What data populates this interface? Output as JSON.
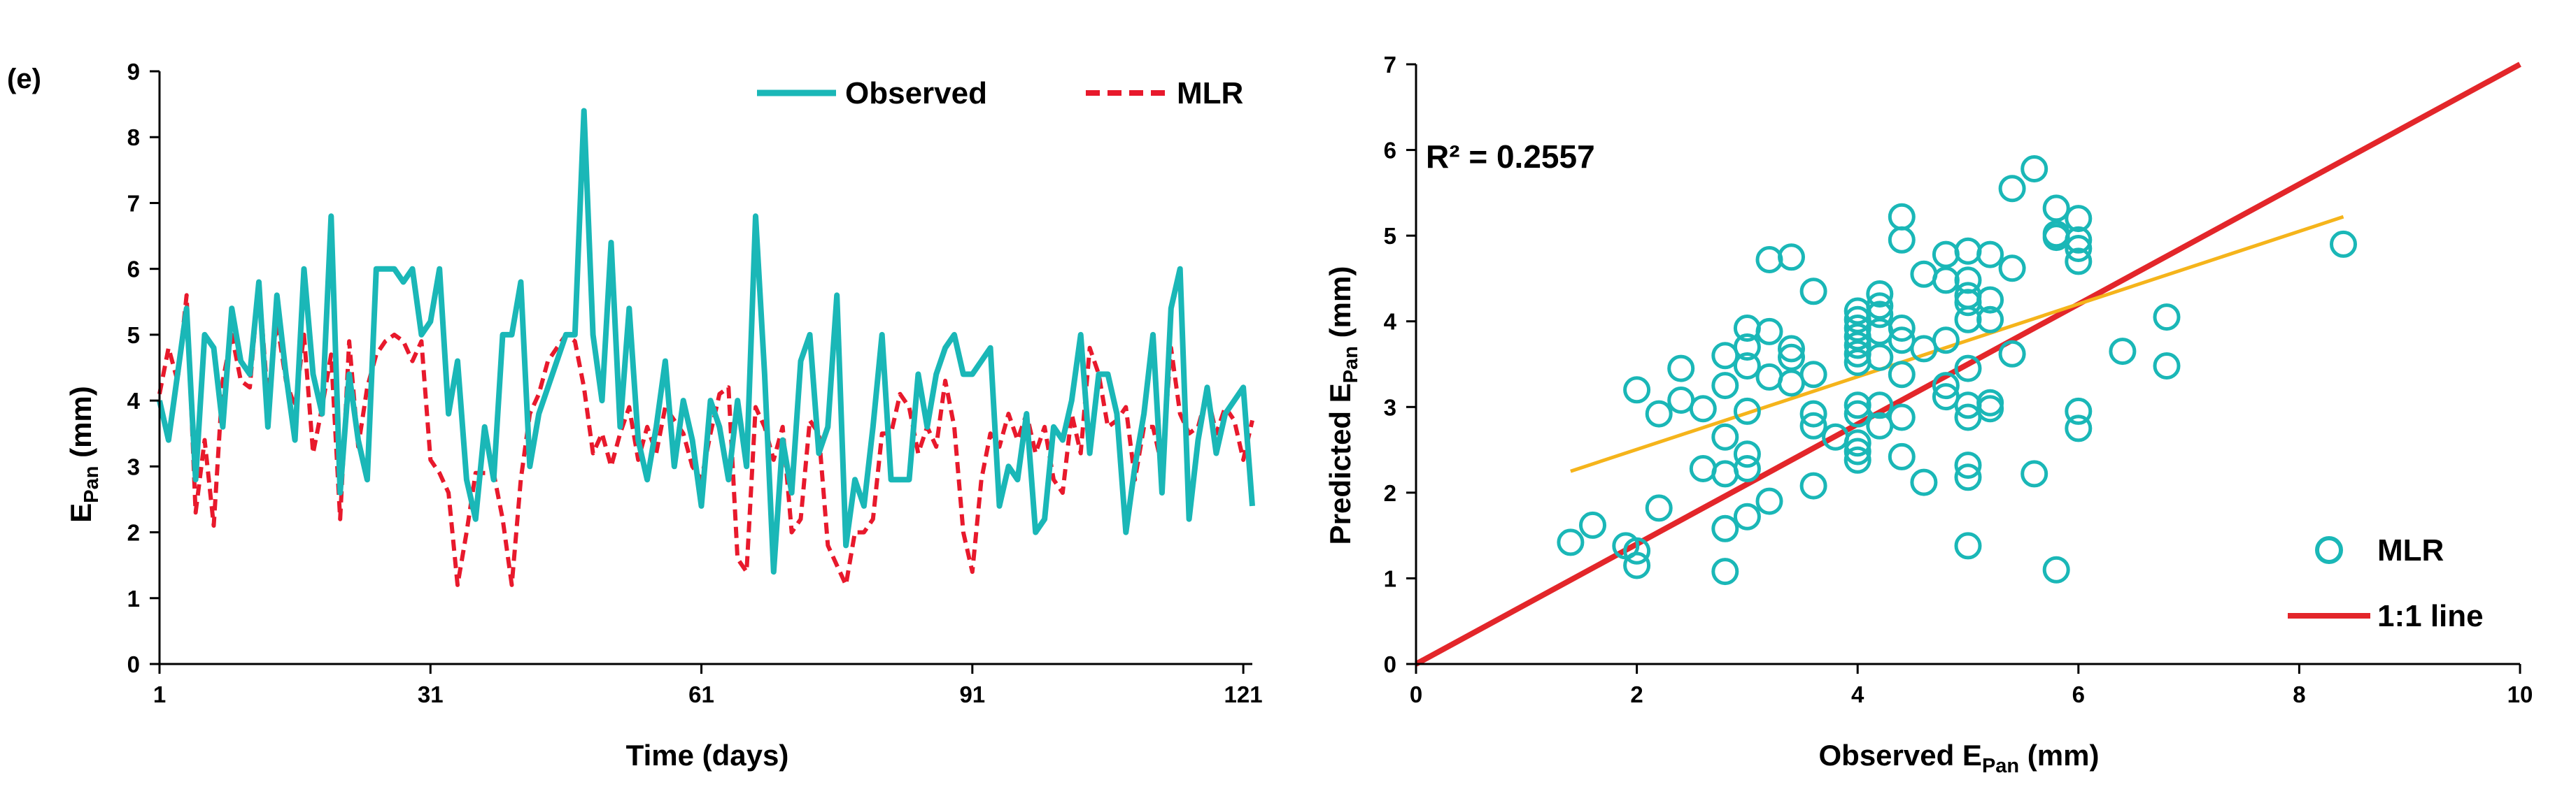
{
  "panel_label": "(e)",
  "colors": {
    "observed": "#1AB7B7",
    "mlr": "#E8192C",
    "one_to_one": "#E3262A",
    "trend": "#F5B41B",
    "axis": "#000000"
  },
  "chart_data": [
    {
      "type": "line",
      "title": "",
      "xlabel": "Time (days)",
      "ylabel": {
        "main": "E",
        "sub": "Pan",
        "unit": " (mm)"
      },
      "xlim": [
        1,
        122
      ],
      "ylim": [
        0,
        9
      ],
      "xticks": [
        1,
        31,
        61,
        91,
        121
      ],
      "yticks": [
        0,
        1,
        2,
        3,
        4,
        5,
        6,
        7,
        8,
        9
      ],
      "legend": [
        "Observed",
        "MLR"
      ],
      "legend_position": "top-right",
      "x": [
        1,
        2,
        3,
        4,
        5,
        6,
        7,
        8,
        9,
        10,
        11,
        12,
        13,
        14,
        15,
        16,
        17,
        18,
        19,
        20,
        21,
        22,
        23,
        24,
        25,
        26,
        27,
        28,
        29,
        30,
        31,
        32,
        33,
        34,
        35,
        36,
        37,
        38,
        39,
        40,
        41,
        42,
        43,
        44,
        45,
        46,
        47,
        48,
        49,
        50,
        51,
        52,
        53,
        54,
        55,
        56,
        57,
        58,
        59,
        60,
        61,
        62,
        63,
        64,
        65,
        66,
        67,
        68,
        69,
        70,
        71,
        72,
        73,
        74,
        75,
        76,
        77,
        78,
        79,
        80,
        81,
        82,
        83,
        84,
        85,
        86,
        87,
        88,
        89,
        90,
        91,
        92,
        93,
        94,
        95,
        96,
        97,
        98,
        99,
        100,
        101,
        102,
        103,
        104,
        105,
        106,
        107,
        108,
        109,
        110,
        111,
        112,
        113,
        114,
        115,
        116,
        117,
        118,
        119,
        120,
        121,
        122
      ],
      "series": [
        {
          "name": "Observed",
          "values": [
            4.0,
            3.4,
            4.4,
            5.4,
            2.8,
            5.0,
            4.8,
            3.6,
            5.4,
            4.6,
            4.4,
            5.8,
            3.6,
            5.6,
            4.4,
            3.4,
            6.0,
            4.4,
            3.8,
            6.8,
            2.6,
            4.4,
            3.4,
            2.8,
            6.0,
            6.0,
            6.0,
            5.8,
            6.0,
            5.0,
            5.2,
            6.0,
            3.8,
            4.6,
            2.8,
            2.2,
            3.6,
            2.8,
            5.0,
            5.0,
            5.8,
            3.0,
            3.8,
            4.2,
            4.6,
            5.0,
            5.0,
            8.4,
            5.0,
            4.0,
            6.4,
            3.6,
            5.4,
            3.4,
            2.8,
            3.6,
            4.6,
            3.0,
            4.0,
            3.4,
            2.4,
            4.0,
            3.6,
            2.8,
            4.0,
            3.0,
            6.8,
            4.4,
            1.4,
            3.4,
            2.6,
            4.6,
            5.0,
            3.2,
            3.6,
            5.6,
            1.8,
            2.8,
            2.4,
            3.6,
            5.0,
            2.8,
            2.8,
            2.8,
            4.4,
            3.6,
            4.4,
            4.8,
            5.0,
            4.4,
            4.4,
            4.6,
            4.8,
            2.4,
            3.0,
            2.8,
            3.8,
            2.0,
            2.2,
            3.6,
            3.4,
            4.0,
            5.0,
            3.2,
            4.4,
            4.4,
            3.8,
            2.0,
            3.0,
            3.8,
            5.0,
            2.6,
            5.4,
            6.0,
            2.2,
            3.4,
            4.2,
            3.2,
            3.8,
            4.0,
            4.2,
            2.4
          ]
        },
        {
          "name": "MLR",
          "values": [
            4.1,
            4.8,
            4.3,
            5.6,
            2.3,
            3.4,
            2.1,
            4.3,
            5.0,
            4.3,
            4.2,
            5.8,
            4.0,
            5.2,
            4.3,
            3.9,
            5.0,
            3.2,
            3.9,
            4.7,
            2.2,
            4.9,
            3.3,
            4.2,
            4.7,
            4.9,
            5.0,
            4.9,
            4.6,
            4.9,
            3.1,
            2.9,
            2.6,
            1.2,
            2.0,
            2.9,
            2.9,
            2.9,
            2.2,
            1.2,
            2.8,
            3.8,
            4.1,
            4.6,
            4.8,
            5.0,
            4.9,
            4.2,
            3.2,
            3.5,
            3.0,
            3.5,
            3.9,
            3.1,
            3.6,
            3.2,
            3.9,
            3.7,
            3.5,
            3.0,
            2.8,
            3.5,
            4.1,
            4.2,
            1.6,
            1.4,
            3.9,
            3.6,
            3.1,
            3.6,
            2.0,
            2.2,
            3.7,
            3.5,
            1.8,
            1.5,
            1.2,
            2.0,
            2.0,
            2.2,
            3.5,
            3.5,
            4.1,
            3.9,
            3.2,
            3.6,
            3.3,
            4.3,
            3.6,
            2.0,
            1.4,
            2.8,
            3.5,
            3.3,
            3.8,
            3.4,
            3.8,
            3.2,
            3.6,
            2.8,
            2.6,
            3.8,
            3.2,
            4.8,
            4.4,
            3.6,
            3.7,
            3.9,
            2.8,
            3.6,
            3.6,
            3.0,
            4.8,
            3.8,
            3.5,
            3.6,
            4.1,
            3.5,
            3.9,
            3.7,
            3.1,
            3.7
          ]
        }
      ]
    },
    {
      "type": "scatter",
      "title": "",
      "xlabel": {
        "main": "Observed E",
        "sub": "Pan",
        "unit": " (mm)"
      },
      "ylabel": {
        "main": "Predicted E",
        "sub": "Pan",
        "unit": " (mm)"
      },
      "xlim": [
        0,
        10
      ],
      "ylim": [
        0,
        7
      ],
      "xticks": [
        0,
        2,
        4,
        6,
        8,
        10
      ],
      "yticks": [
        0,
        1,
        2,
        3,
        4,
        5,
        6,
        7
      ],
      "annotation": "R² = 0.2557",
      "legend": [
        "MLR",
        "1:1 line"
      ],
      "legend_position": "bottom-right",
      "one_to_one": [
        [
          0,
          0
        ],
        [
          10,
          7
        ]
      ],
      "trendline": [
        [
          1.4,
          2.25
        ],
        [
          8.4,
          5.22
        ]
      ],
      "points": [
        [
          1.4,
          1.42
        ],
        [
          1.6,
          1.62
        ],
        [
          1.9,
          1.38
        ],
        [
          2.0,
          1.15
        ],
        [
          2.0,
          1.32
        ],
        [
          2.0,
          3.2
        ],
        [
          2.2,
          1.82
        ],
        [
          2.2,
          2.92
        ],
        [
          2.4,
          3.08
        ],
        [
          2.4,
          3.45
        ],
        [
          2.6,
          2.98
        ],
        [
          2.6,
          2.28
        ],
        [
          2.8,
          2.22
        ],
        [
          2.8,
          2.65
        ],
        [
          2.8,
          3.6
        ],
        [
          2.8,
          3.25
        ],
        [
          2.8,
          1.58
        ],
        [
          2.8,
          1.08
        ],
        [
          3.0,
          2.95
        ],
        [
          3.0,
          2.45
        ],
        [
          3.0,
          2.28
        ],
        [
          3.0,
          3.48
        ],
        [
          3.0,
          3.7
        ],
        [
          3.0,
          3.92
        ],
        [
          3.0,
          1.72
        ],
        [
          3.2,
          1.9
        ],
        [
          3.2,
          3.88
        ],
        [
          3.2,
          3.35
        ],
        [
          3.2,
          4.72
        ],
        [
          3.4,
          4.75
        ],
        [
          3.4,
          3.68
        ],
        [
          3.4,
          3.58
        ],
        [
          3.4,
          3.28
        ],
        [
          3.6,
          2.92
        ],
        [
          3.6,
          2.78
        ],
        [
          3.6,
          2.08
        ],
        [
          3.6,
          3.38
        ],
        [
          3.6,
          4.35
        ],
        [
          3.8,
          2.65
        ],
        [
          4.0,
          2.38
        ],
        [
          4.0,
          2.48
        ],
        [
          4.0,
          2.58
        ],
        [
          4.0,
          2.92
        ],
        [
          4.0,
          3.02
        ],
        [
          4.0,
          3.52
        ],
        [
          4.0,
          3.62
        ],
        [
          4.0,
          3.72
        ],
        [
          4.0,
          3.82
        ],
        [
          4.0,
          3.92
        ],
        [
          4.0,
          4.02
        ],
        [
          4.0,
          4.12
        ],
        [
          4.2,
          3.58
        ],
        [
          4.2,
          3.88
        ],
        [
          4.2,
          4.08
        ],
        [
          4.2,
          4.18
        ],
        [
          4.2,
          4.32
        ],
        [
          4.2,
          3.02
        ],
        [
          4.2,
          2.78
        ],
        [
          4.4,
          2.88
        ],
        [
          4.4,
          3.38
        ],
        [
          4.4,
          3.78
        ],
        [
          4.4,
          3.92
        ],
        [
          4.4,
          4.95
        ],
        [
          4.4,
          5.22
        ],
        [
          4.4,
          2.42
        ],
        [
          4.6,
          2.12
        ],
        [
          4.6,
          4.55
        ],
        [
          4.6,
          3.68
        ],
        [
          4.8,
          3.12
        ],
        [
          4.8,
          3.25
        ],
        [
          4.8,
          3.78
        ],
        [
          4.8,
          4.48
        ],
        [
          4.8,
          4.78
        ],
        [
          5.0,
          4.82
        ],
        [
          5.0,
          4.48
        ],
        [
          5.0,
          4.3
        ],
        [
          5.0,
          4.22
        ],
        [
          5.0,
          4.02
        ],
        [
          5.0,
          3.45
        ],
        [
          5.0,
          3.02
        ],
        [
          5.0,
          2.88
        ],
        [
          5.0,
          2.32
        ],
        [
          5.0,
          2.18
        ],
        [
          5.0,
          1.38
        ],
        [
          5.2,
          2.98
        ],
        [
          5.2,
          3.05
        ],
        [
          5.2,
          4.02
        ],
        [
          5.2,
          4.25
        ],
        [
          5.2,
          4.78
        ],
        [
          5.4,
          4.62
        ],
        [
          5.4,
          3.62
        ],
        [
          5.4,
          5.55
        ],
        [
          5.6,
          5.78
        ],
        [
          5.6,
          2.22
        ],
        [
          5.8,
          5.02
        ],
        [
          5.8,
          4.98
        ],
        [
          5.8,
          5.32
        ],
        [
          5.8,
          1.1
        ],
        [
          6.0,
          5.2
        ],
        [
          6.0,
          4.95
        ],
        [
          6.0,
          4.85
        ],
        [
          6.0,
          4.7
        ],
        [
          6.0,
          2.95
        ],
        [
          6.0,
          2.75
        ],
        [
          6.4,
          3.65
        ],
        [
          6.8,
          3.48
        ],
        [
          6.8,
          4.05
        ],
        [
          8.4,
          4.9
        ]
      ]
    }
  ]
}
